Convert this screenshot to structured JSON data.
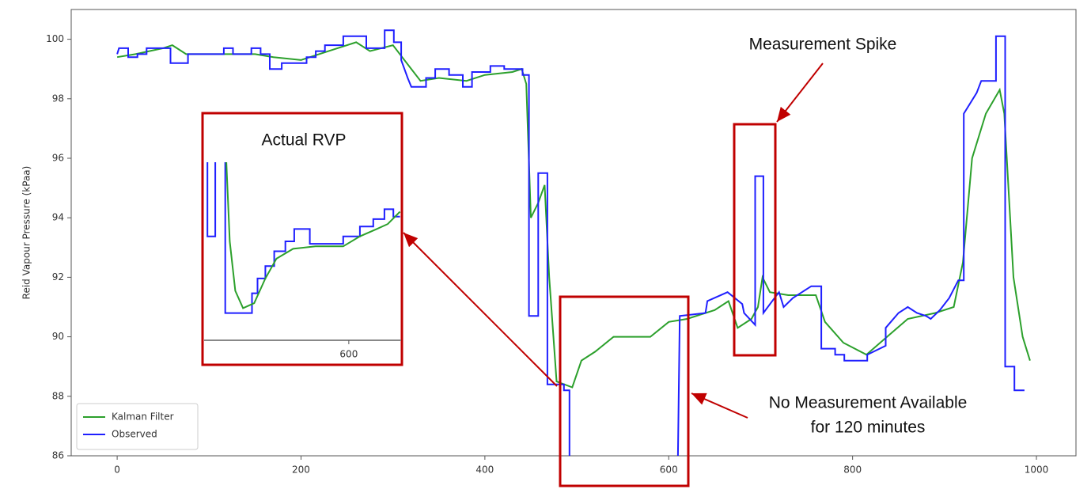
{
  "chart_data": [
    {
      "type": "line",
      "ylabel": "Reid Vapour Pressure (kPaa)",
      "xlim": [
        -50,
        1043
      ],
      "ylim": [
        86,
        101
      ],
      "xticks": [
        0,
        200,
        400,
        600,
        800,
        1000
      ],
      "yticks": [
        86,
        88,
        90,
        92,
        94,
        96,
        98,
        100
      ],
      "legend": "lower left",
      "series": [
        {
          "name": "Kalman Filter",
          "color": "#2ca02c",
          "x": [
            0,
            20,
            50,
            60,
            75,
            150,
            170,
            200,
            230,
            260,
            275,
            300,
            310,
            330,
            350,
            380,
            400,
            430,
            440,
            445,
            450,
            458,
            465,
            470,
            478,
            495,
            505,
            520,
            540,
            580,
            600,
            620,
            650,
            665,
            675,
            690,
            697,
            702,
            710,
            730,
            760,
            770,
            790,
            815,
            830,
            860,
            890,
            910,
            920,
            930,
            945,
            960,
            965,
            975,
            985,
            993
          ],
          "values": [
            99.4,
            99.5,
            99.7,
            99.8,
            99.5,
            99.5,
            99.4,
            99.3,
            99.6,
            99.9,
            99.6,
            99.8,
            99.4,
            98.6,
            98.7,
            98.6,
            98.8,
            98.9,
            99.0,
            98.5,
            94.0,
            94.5,
            95.1,
            92.0,
            88.5,
            88.3,
            89.2,
            89.5,
            90.0,
            90.0,
            90.5,
            90.6,
            90.9,
            91.2,
            90.3,
            90.6,
            91.0,
            92.0,
            91.5,
            91.4,
            91.4,
            90.5,
            89.8,
            89.4,
            89.8,
            90.6,
            90.8,
            91.0,
            92.5,
            96.0,
            97.5,
            98.3,
            97.5,
            92.0,
            90.0,
            89.2
          ]
        },
        {
          "name": "Observed",
          "color": "#1f1fff",
          "x": [
            0,
            2,
            12,
            12,
            22,
            22,
            32,
            32,
            58,
            58,
            77,
            77,
            116,
            116,
            126,
            126,
            146,
            146,
            156,
            156,
            166,
            166,
            179,
            179,
            206,
            206,
            216,
            216,
            226,
            226,
            246,
            246,
            271,
            271,
            291,
            291,
            301,
            301,
            309,
            309,
            316,
            320,
            336,
            336,
            346,
            346,
            361,
            361,
            376,
            376,
            386,
            386,
            406,
            406,
            421,
            421,
            441,
            441,
            448,
            448,
            458,
            458,
            468,
            468,
            486,
            486,
            492,
            492,
            null,
            610,
            612,
            640,
            642,
            664,
            680,
            682,
            694,
            694,
            703,
            703,
            715,
            720,
            725,
            735,
            745,
            755,
            766,
            766,
            781,
            781,
            791,
            791,
            816,
            816,
            836,
            836,
            850,
            860,
            870,
            880,
            885,
            895,
            905,
            915,
            921,
            921,
            935,
            940,
            956,
            956,
            966,
            966,
            976,
            976,
            987
          ],
          "values": [
            99.5,
            99.7,
            99.7,
            99.4,
            99.4,
            99.5,
            99.5,
            99.7,
            99.7,
            99.2,
            99.2,
            99.5,
            99.5,
            99.7,
            99.7,
            99.5,
            99.5,
            99.7,
            99.7,
            99.5,
            99.5,
            99.0,
            99.0,
            99.2,
            99.2,
            99.4,
            99.4,
            99.6,
            99.6,
            99.8,
            99.8,
            100.1,
            100.1,
            99.7,
            99.7,
            100.3,
            100.3,
            99.9,
            99.9,
            99.3,
            98.7,
            98.4,
            98.4,
            98.7,
            98.7,
            99.0,
            99.0,
            98.8,
            98.8,
            98.4,
            98.4,
            98.9,
            98.9,
            99.1,
            99.1,
            99.0,
            99.0,
            98.8,
            98.8,
            90.7,
            90.7,
            95.5,
            95.5,
            88.4,
            88.4,
            88.2,
            88.2,
            86,
            null,
            86,
            90.7,
            90.8,
            91.2,
            91.5,
            91.1,
            90.8,
            90.4,
            95.4,
            95.4,
            90.8,
            91.3,
            91.5,
            91.0,
            91.3,
            91.5,
            91.7,
            91.7,
            89.6,
            89.6,
            89.4,
            89.4,
            89.2,
            89.2,
            89.4,
            89.7,
            90.3,
            90.8,
            91.0,
            90.8,
            90.7,
            90.6,
            90.9,
            91.3,
            91.9,
            91.9,
            97.5,
            98.2,
            98.6,
            98.6,
            100.1,
            100.1,
            89.0,
            89.0,
            88.2,
            88.2
          ]
        }
      ],
      "annotations": [
        "Measurement Spike",
        [
          "No Measurement Available",
          "for 120 minutes"
        ]
      ]
    },
    {
      "type": "line",
      "title": "Actual RVP",
      "xlim": [
        470,
        647
      ],
      "ylim": [
        88,
        96
      ],
      "xticks": [
        600
      ],
      "series": [
        {
          "color": "#1f1fff",
          "x": [
            473,
            473,
            480,
            480,
            null,
            489,
            489,
            513,
            513,
            518,
            518,
            525,
            525,
            533,
            533,
            543,
            543,
            551,
            551,
            565,
            565,
            595,
            595,
            610,
            610,
            622,
            622,
            632,
            632,
            640,
            640,
            646
          ],
          "values": [
            95.2,
            92.2,
            92.2,
            95.2,
            null,
            95.2,
            89.1,
            89.1,
            89.9,
            89.9,
            90.5,
            90.5,
            91.0,
            91.0,
            91.6,
            91.6,
            92.0,
            92.0,
            92.5,
            92.5,
            91.9,
            91.9,
            92.2,
            92.2,
            92.6,
            92.6,
            92.9,
            92.9,
            93.3,
            93.3,
            93.0,
            93.0
          ]
        },
        {
          "color": "#2ca02c",
          "x": [
            490,
            493,
            498,
            505,
            515,
            525,
            535,
            550,
            570,
            595,
            610,
            625,
            635,
            646
          ],
          "values": [
            95.2,
            92.0,
            90.0,
            89.3,
            89.5,
            90.5,
            91.3,
            91.7,
            91.8,
            91.8,
            92.2,
            92.5,
            92.7,
            93.2
          ]
        }
      ]
    }
  ]
}
